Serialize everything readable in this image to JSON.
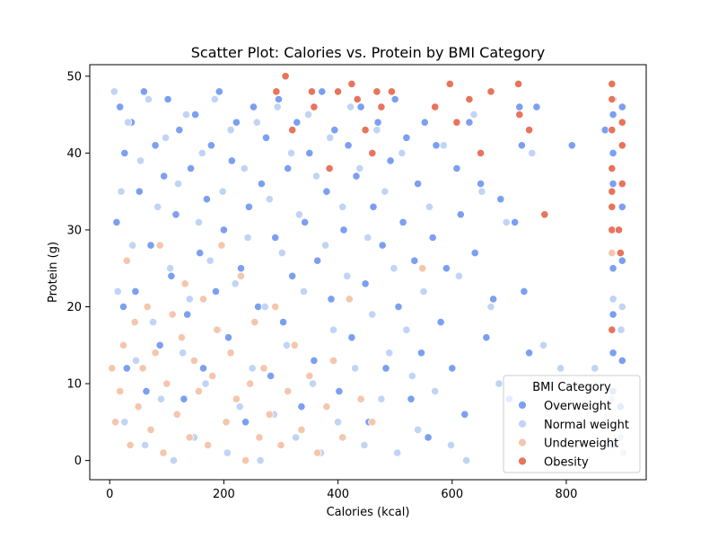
{
  "chart_data": {
    "type": "scatter",
    "title": "Scatter Plot: Calories vs. Protein by BMI Category",
    "xlabel": "Calories (kcal)",
    "ylabel": "Protein (g)",
    "xlim": [
      -35,
      940
    ],
    "ylim": [
      -2.5,
      51.5
    ],
    "xticks": [
      0,
      200,
      400,
      600,
      800
    ],
    "yticks": [
      0,
      10,
      20,
      30,
      40,
      50
    ],
    "grid": false,
    "legend": {
      "title": "BMI Category",
      "placement": "lower-right",
      "entries": [
        "Overweight",
        "Normal weight",
        "Underweight",
        "Obesity"
      ]
    },
    "colors": {
      "Overweight": "#7b9ff2",
      "Normal weight": "#c0d4f5",
      "Underweight": "#f4c6ad",
      "Obesity": "#e7745b"
    },
    "series": [
      {
        "name": "Overweight",
        "points": [
          [
            12,
            31
          ],
          [
            18,
            46
          ],
          [
            24,
            20
          ],
          [
            26,
            40
          ],
          [
            30,
            12
          ],
          [
            38,
            44
          ],
          [
            45,
            22
          ],
          [
            52,
            35
          ],
          [
            60,
            48
          ],
          [
            64,
            9
          ],
          [
            72,
            28
          ],
          [
            80,
            41
          ],
          [
            88,
            15
          ],
          [
            95,
            37
          ],
          [
            102,
            47
          ],
          [
            108,
            24
          ],
          [
            116,
            32
          ],
          [
            122,
            43
          ],
          [
            130,
            8
          ],
          [
            136,
            19
          ],
          [
            142,
            38
          ],
          [
            150,
            45
          ],
          [
            158,
            27
          ],
          [
            164,
            12
          ],
          [
            170,
            34
          ],
          [
            178,
            41
          ],
          [
            186,
            22
          ],
          [
            192,
            48
          ],
          [
            200,
            30
          ],
          [
            208,
            16
          ],
          [
            214,
            39
          ],
          [
            222,
            44
          ],
          [
            230,
            25
          ],
          [
            238,
            5
          ],
          [
            244,
            33
          ],
          [
            252,
            46
          ],
          [
            260,
            20
          ],
          [
            266,
            36
          ],
          [
            274,
            42
          ],
          [
            282,
            11
          ],
          [
            290,
            29
          ],
          [
            296,
            47
          ],
          [
            304,
            18
          ],
          [
            312,
            38
          ],
          [
            320,
            24
          ],
          [
            328,
            44
          ],
          [
            336,
            7
          ],
          [
            342,
            31
          ],
          [
            350,
            40
          ],
          [
            358,
            13
          ],
          [
            364,
            26
          ],
          [
            372,
            48
          ],
          [
            380,
            35
          ],
          [
            388,
            21
          ],
          [
            394,
            43
          ],
          [
            402,
            9
          ],
          [
            410,
            30
          ],
          [
            418,
            41
          ],
          [
            424,
            16
          ],
          [
            432,
            37
          ],
          [
            440,
            46
          ],
          [
            448,
            23
          ],
          [
            454,
            5
          ],
          [
            462,
            33
          ],
          [
            470,
            44
          ],
          [
            478,
            28
          ],
          [
            484,
            12
          ],
          [
            492,
            39
          ],
          [
            500,
            47
          ],
          [
            506,
            20
          ],
          [
            514,
            31
          ],
          [
            520,
            42
          ],
          [
            528,
            8
          ],
          [
            534,
            26
          ],
          [
            540,
            36
          ],
          [
            546,
            14
          ],
          [
            552,
            44
          ],
          [
            558,
            3
          ],
          [
            566,
            29
          ],
          [
            572,
            41
          ],
          [
            580,
            18
          ],
          [
            590,
            25
          ],
          [
            600,
            12
          ],
          [
            608,
            38
          ],
          [
            615,
            32
          ],
          [
            622,
            6
          ],
          [
            630,
            44
          ],
          [
            640,
            27
          ],
          [
            650,
            36
          ],
          [
            660,
            16
          ],
          [
            672,
            21
          ],
          [
            685,
            34
          ],
          [
            700,
            8
          ],
          [
            710,
            31
          ],
          [
            718,
            46
          ],
          [
            722,
            41
          ],
          [
            726,
            22
          ],
          [
            735,
            14
          ],
          [
            748,
            46
          ],
          [
            810,
            41
          ],
          [
            868,
            43
          ],
          [
            882,
            2
          ],
          [
            882,
            9
          ],
          [
            882,
            14
          ],
          [
            882,
            19
          ],
          [
            882,
            25
          ],
          [
            882,
            30
          ],
          [
            882,
            36
          ],
          [
            882,
            40
          ],
          [
            882,
            45
          ],
          [
            882,
            47
          ],
          [
            895,
            7
          ],
          [
            898,
            13
          ],
          [
            898,
            26
          ],
          [
            898,
            33
          ],
          [
            898,
            41
          ],
          [
            898,
            46
          ]
        ]
      },
      {
        "name": "Normal weight",
        "points": [
          [
            8,
            48
          ],
          [
            14,
            22
          ],
          [
            20,
            35
          ],
          [
            26,
            5
          ],
          [
            32,
            44
          ],
          [
            40,
            28
          ],
          [
            46,
            13
          ],
          [
            54,
            39
          ],
          [
            62,
            2
          ],
          [
            68,
            47
          ],
          [
            76,
            18
          ],
          [
            84,
            33
          ],
          [
            90,
            8
          ],
          [
            98,
            42
          ],
          [
            106,
            25
          ],
          [
            112,
            0
          ],
          [
            120,
            36
          ],
          [
            128,
            14
          ],
          [
            134,
            45
          ],
          [
            140,
            21
          ],
          [
            148,
            3
          ],
          [
            156,
            31
          ],
          [
            162,
            40
          ],
          [
            168,
            10
          ],
          [
            176,
            26
          ],
          [
            184,
            47
          ],
          [
            190,
            17
          ],
          [
            198,
            35
          ],
          [
            206,
            1
          ],
          [
            212,
            43
          ],
          [
            220,
            23
          ],
          [
            228,
            7
          ],
          [
            236,
            38
          ],
          [
            242,
            29
          ],
          [
            250,
            12
          ],
          [
            258,
            44
          ],
          [
            264,
            0
          ],
          [
            272,
            20
          ],
          [
            280,
            34
          ],
          [
            288,
            6
          ],
          [
            294,
            46
          ],
          [
            302,
            27
          ],
          [
            310,
            15
          ],
          [
            318,
            40
          ],
          [
            326,
            3
          ],
          [
            332,
            32
          ],
          [
            340,
            22
          ],
          [
            348,
            45
          ],
          [
            356,
            10
          ],
          [
            362,
            37
          ],
          [
            370,
            1
          ],
          [
            378,
            28
          ],
          [
            386,
            42
          ],
          [
            392,
            17
          ],
          [
            400,
            5
          ],
          [
            408,
            33
          ],
          [
            416,
            24
          ],
          [
            422,
            46
          ],
          [
            430,
            12
          ],
          [
            438,
            38
          ],
          [
            446,
            2
          ],
          [
            452,
            29
          ],
          [
            460,
            19
          ],
          [
            468,
            43
          ],
          [
            476,
            8
          ],
          [
            482,
            35
          ],
          [
            490,
            14
          ],
          [
            498,
            25
          ],
          [
            504,
            1
          ],
          [
            512,
            40
          ],
          [
            520,
            17
          ],
          [
            530,
            11
          ],
          [
            540,
            4
          ],
          [
            550,
            22
          ],
          [
            560,
            33
          ],
          [
            570,
            9
          ],
          [
            585,
            41
          ],
          [
            598,
            2
          ],
          [
            612,
            24
          ],
          [
            625,
            0
          ],
          [
            638,
            45
          ],
          [
            652,
            35
          ],
          [
            668,
            20
          ],
          [
            682,
            10
          ],
          [
            695,
            31
          ],
          [
            740,
            40
          ],
          [
            760,
            15
          ],
          [
            790,
            12
          ],
          [
            850,
            12
          ],
          [
            880,
            8
          ],
          [
            882,
            21
          ],
          [
            895,
            3
          ],
          [
            896,
            17
          ],
          [
            898,
            20
          ],
          [
            900,
            1
          ]
        ]
      },
      {
        "name": "Underweight",
        "points": [
          [
            4,
            12
          ],
          [
            10,
            5
          ],
          [
            18,
            9
          ],
          [
            24,
            15
          ],
          [
            30,
            26
          ],
          [
            36,
            2
          ],
          [
            44,
            18
          ],
          [
            50,
            7
          ],
          [
            58,
            12
          ],
          [
            66,
            20
          ],
          [
            72,
            4
          ],
          [
            80,
            14
          ],
          [
            88,
            28
          ],
          [
            94,
            1
          ],
          [
            100,
            10
          ],
          [
            110,
            19
          ],
          [
            118,
            6
          ],
          [
            126,
            16
          ],
          [
            132,
            23
          ],
          [
            140,
            3
          ],
          [
            148,
            13
          ],
          [
            156,
            9
          ],
          [
            164,
            21
          ],
          [
            172,
            2
          ],
          [
            180,
            11
          ],
          [
            188,
            17
          ],
          [
            196,
            28
          ],
          [
            204,
            5
          ],
          [
            212,
            14
          ],
          [
            222,
            8
          ],
          [
            230,
            24
          ],
          [
            238,
            0
          ],
          [
            246,
            10
          ],
          [
            254,
            18
          ],
          [
            262,
            3
          ],
          [
            270,
            12
          ],
          [
            280,
            6
          ],
          [
            290,
            20
          ],
          [
            300,
            2
          ],
          [
            312,
            9
          ],
          [
            324,
            15
          ],
          [
            336,
            4
          ],
          [
            350,
            11
          ],
          [
            364,
            1
          ],
          [
            380,
            7
          ],
          [
            392,
            13
          ],
          [
            408,
            3
          ],
          [
            420,
            21
          ],
          [
            440,
            8
          ],
          [
            460,
            5
          ],
          [
            548,
            25
          ],
          [
            880,
            27
          ]
        ]
      },
      {
        "name": "Obesity",
        "points": [
          [
            292,
            48
          ],
          [
            308,
            50
          ],
          [
            320,
            43
          ],
          [
            354,
            48
          ],
          [
            358,
            46
          ],
          [
            385,
            38
          ],
          [
            400,
            48
          ],
          [
            424,
            49
          ],
          [
            434,
            47
          ],
          [
            448,
            43
          ],
          [
            460,
            40
          ],
          [
            468,
            48
          ],
          [
            476,
            46
          ],
          [
            494,
            48
          ],
          [
            570,
            46
          ],
          [
            596,
            49
          ],
          [
            608,
            44
          ],
          [
            630,
            47
          ],
          [
            650,
            40
          ],
          [
            668,
            48
          ],
          [
            716,
            49
          ],
          [
            718,
            45
          ],
          [
            735,
            43
          ],
          [
            762,
            32
          ],
          [
            880,
            30
          ],
          [
            880,
            33
          ],
          [
            880,
            35
          ],
          [
            880,
            38
          ],
          [
            880,
            43
          ],
          [
            880,
            47
          ],
          [
            880,
            49
          ],
          [
            880,
            17
          ],
          [
            892,
            30
          ],
          [
            895,
            27
          ],
          [
            898,
            36
          ],
          [
            898,
            41
          ],
          [
            898,
            44
          ]
        ]
      }
    ]
  }
}
